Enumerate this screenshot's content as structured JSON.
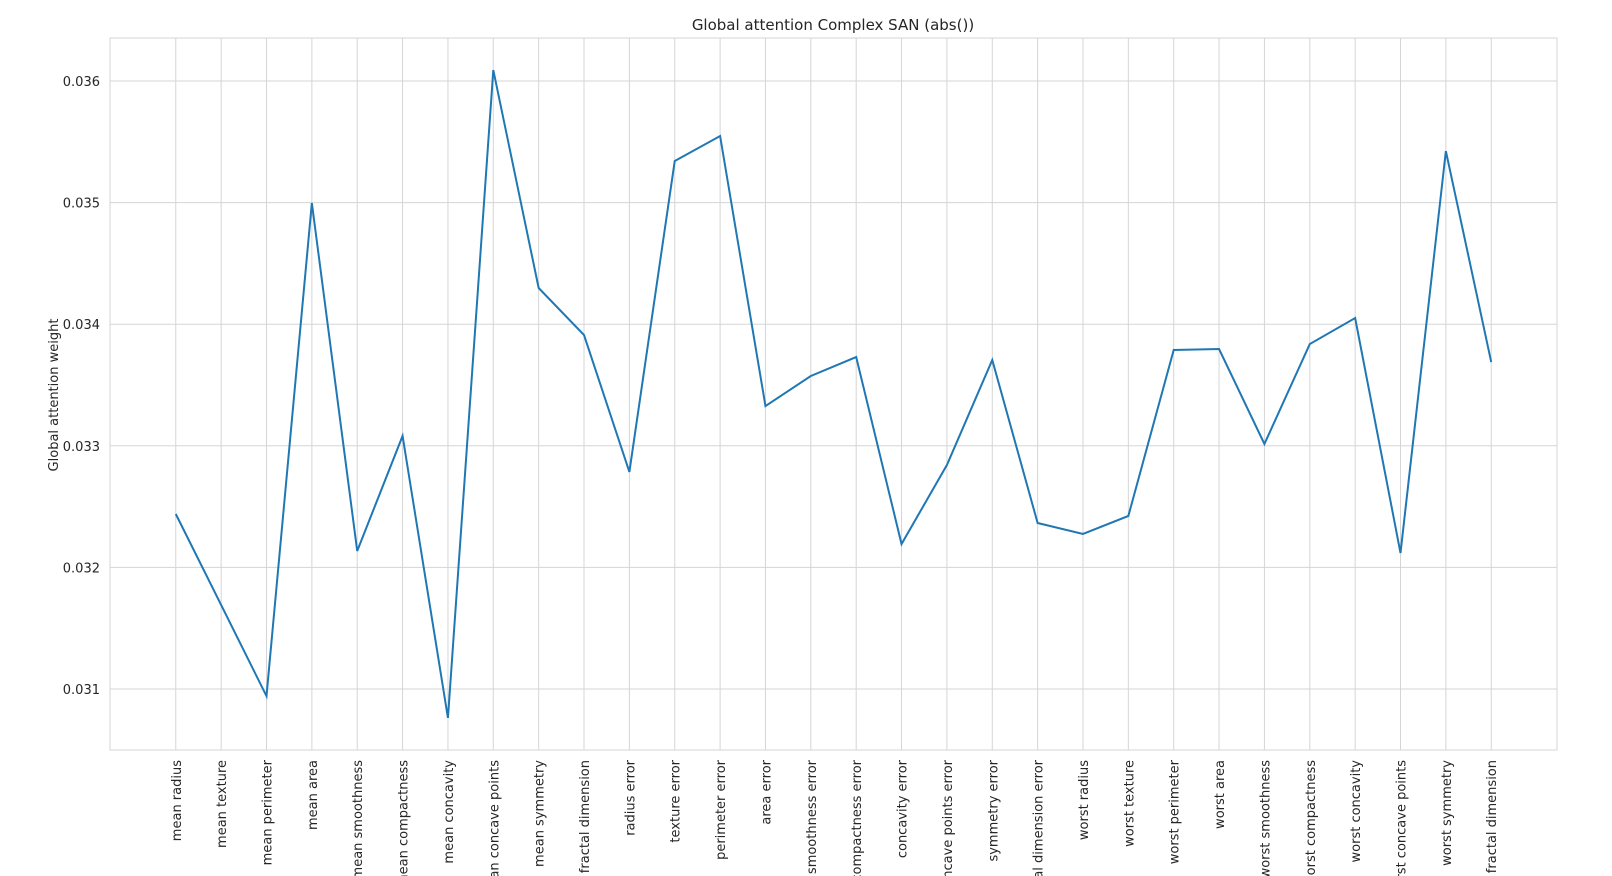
{
  "chart_data": {
    "type": "line",
    "title": "Global attention Complex SAN (abs())",
    "y_label": "Global attention weight",
    "categories": [
      "mean radius",
      "mean texture",
      "mean perimeter",
      "mean area",
      "mean smoothness",
      "mean compactness",
      "mean concavity",
      "mean concave points",
      "mean symmetry",
      "mean fractal dimension",
      "radius error",
      "texture error",
      "perimeter error",
      "area error",
      "smoothness error",
      "compactness error",
      "concavity error",
      "concave points error",
      "symmetry error",
      "fractal dimension error",
      "worst radius",
      "worst texture",
      "worst perimeter",
      "worst area",
      "worst smoothness",
      "worst compactness",
      "worst concavity",
      "worst concave points",
      "worst symmetry",
      "worst fractal dimension"
    ],
    "series": [
      {
        "name": "Global attention",
        "color": "#1f77b4",
        "values": [
          0.032439,
          0.031691,
          0.030942,
          0.034997,
          0.032135,
          0.033081,
          0.030762,
          0.03609,
          0.034298,
          0.033911,
          0.032785,
          0.035342,
          0.035548,
          0.033327,
          0.033574,
          0.03373,
          0.032192,
          0.032842,
          0.033706,
          0.032365,
          0.032275,
          0.032423,
          0.033788,
          0.033796,
          0.033015,
          0.033837,
          0.034051,
          0.032118,
          0.035424,
          0.033689
        ]
      }
    ],
    "ylim": [
      0.030498,
      0.036354
    ],
    "yticks": [
      0.031,
      0.032,
      0.033,
      0.034,
      0.035,
      0.036
    ],
    "grid": true
  }
}
